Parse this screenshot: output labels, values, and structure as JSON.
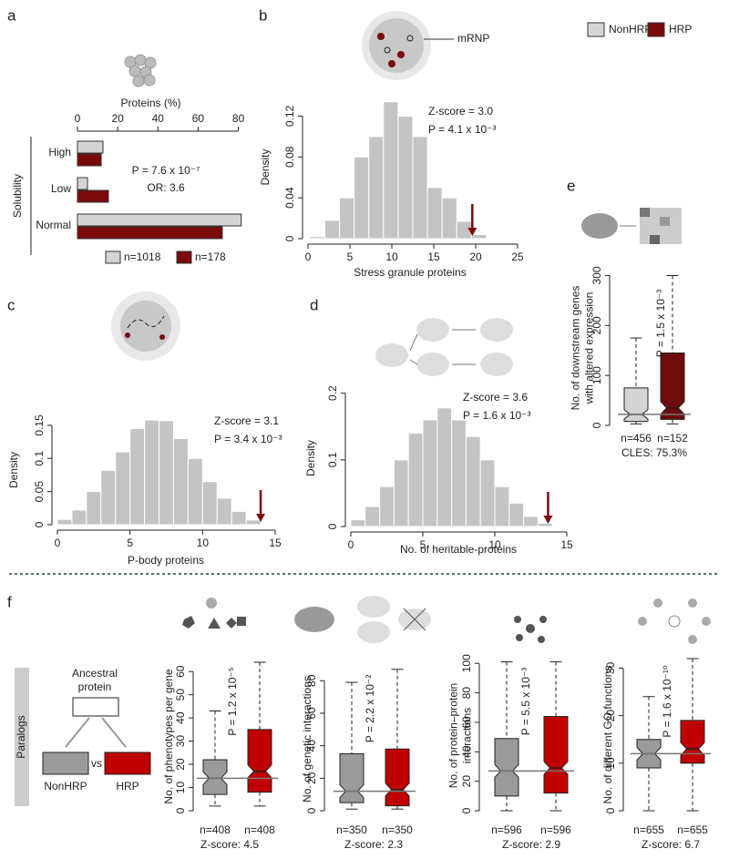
{
  "panel_labels": [
    "a",
    "b",
    "c",
    "d",
    "e",
    "f"
  ],
  "legend": [
    {
      "name": "NonHRP",
      "color": "#d4d4d4"
    },
    {
      "name": "HRP",
      "color": "#7a0a0a"
    }
  ],
  "icon_label": "mRNP",
  "schematic": {
    "side_label": "Paralogs",
    "ancestor": [
      "Ancestral",
      "protein"
    ],
    "left": "NonHRP",
    "vs": "vs",
    "right": "HRP"
  },
  "chart_data": [
    {
      "type": "hbar",
      "xlabel": "Proteins (%)",
      "ylabel": "Solubility",
      "categories": [
        "High",
        "Low",
        "Normal"
      ],
      "series": [
        {
          "name": "n=1018",
          "color": "#d4d4d4",
          "values": [
            12.7,
            5,
            81.4
          ]
        },
        {
          "name": "n=178",
          "color": "#7a0a0a",
          "values": [
            11.8,
            15.4,
            72
          ]
        }
      ],
      "xlim": [
        0,
        82
      ],
      "xticks": [
        0,
        20,
        40,
        60,
        80
      ],
      "annotations": [
        "P = 7.6 x 10⁻⁷",
        "OR: 3.6"
      ]
    },
    {
      "type": "histogram",
      "xlabel": "Stress granule proteins",
      "ylabel": "Density",
      "color": "#c4c4c4",
      "marker_color": "#7a0a0a",
      "bins": [
        0.25,
        2,
        3.75,
        5.5,
        7.25,
        9,
        10.75,
        12.5,
        14.25,
        16,
        17.75,
        19.5,
        21.25
      ],
      "values": [
        0.002,
        0.018,
        0.04,
        0.08,
        0.1,
        0.134,
        0.12,
        0.1,
        0.05,
        0.04,
        0.017,
        0.004
      ],
      "observed": 19.6,
      "xlim": [
        0,
        25
      ],
      "xticks": [
        0,
        5,
        10,
        15,
        20,
        25
      ],
      "ylim": [
        0,
        0.14
      ],
      "yticks": [
        0,
        0.04,
        0.08,
        0.12
      ],
      "annotations": [
        "Z-score = 3.0",
        "P = 4.1 x 10⁻³"
      ]
    },
    {
      "type": "histogram",
      "xlabel": "P-body proteins",
      "ylabel": "Density",
      "color": "#c4c4c4",
      "marker_color": "#7a0a0a",
      "bins": [
        0,
        1,
        2,
        3,
        4,
        5,
        6,
        7,
        8,
        9,
        10,
        11,
        12,
        13,
        14
      ],
      "values": [
        0.008,
        0.022,
        0.05,
        0.082,
        0.11,
        0.145,
        0.158,
        0.157,
        0.13,
        0.1,
        0.065,
        0.04,
        0.02,
        0.007
      ],
      "observed": 14,
      "xlim": [
        0,
        15
      ],
      "xticks": [
        0,
        5,
        10,
        15
      ],
      "ylim": [
        0,
        0.165
      ],
      "yticks": [
        0,
        0.05,
        0.1,
        0.15
      ],
      "annotations": [
        "Z-score = 3.1",
        "P = 3.4 x 10⁻³"
      ]
    },
    {
      "type": "histogram",
      "xlabel": "No. of heritable-proteins",
      "ylabel": "Density",
      "color": "#c4c4c4",
      "marker_color": "#7a0a0a",
      "bins": [
        0,
        1,
        2,
        3,
        4,
        5,
        6,
        7,
        8,
        9,
        10,
        11,
        12,
        13,
        14
      ],
      "values": [
        0.01,
        0.03,
        0.06,
        0.1,
        0.14,
        0.16,
        0.178,
        0.16,
        0.135,
        0.1,
        0.06,
        0.035,
        0.015,
        0.005
      ],
      "observed": 13.7,
      "xlim": [
        0,
        15
      ],
      "xticks": [
        0,
        5,
        10,
        15
      ],
      "ylim": [
        0,
        0.205
      ],
      "yticks": [
        0,
        0.1,
        0.2
      ],
      "annotations": [
        "Z-score = 3.6",
        "P = 1.6 x 10⁻³"
      ]
    },
    {
      "type": "box",
      "ylabel": [
        "No. of downstream genes",
        "with altered expression"
      ],
      "boxes": [
        {
          "label": "n=456",
          "color": "#d4d4d4",
          "min": 3,
          "q1": 8,
          "median": 22,
          "q3": 75,
          "max": 175
        },
        {
          "label": "n=152",
          "color": "#6e0b0b",
          "min": 3,
          "q1": 12,
          "median": 35,
          "q3": 145,
          "max": 300
        }
      ],
      "reference": 22,
      "ylim": [
        0,
        310
      ],
      "yticks": [
        0,
        100,
        200,
        300
      ],
      "annotations": [
        "P = 1.5 x 10⁻³"
      ],
      "footer": "CLES: 75.3%"
    },
    {
      "type": "box",
      "ylabel": [
        "No. of phenotypes per gene"
      ],
      "boxes": [
        {
          "label": "n=408",
          "color": "#9a9a9a",
          "min": 2,
          "q1": 7,
          "median": 14,
          "q3": 22,
          "max": 43
        },
        {
          "label": "n=408",
          "color": "#c00000",
          "min": 2,
          "q1": 8,
          "median": 17,
          "q3": 35,
          "max": 64
        }
      ],
      "reference": 14,
      "ylim": [
        0,
        64
      ],
      "yticks": [
        0,
        10,
        20,
        30,
        40,
        50,
        60
      ],
      "annotations": [
        "P = 1.2 x 10⁻⁵"
      ],
      "footer": "Z-score: 4.5"
    },
    {
      "type": "box",
      "ylabel": [
        "No. of genetic interactions"
      ],
      "boxes": [
        {
          "label": "n=350",
          "color": "#9a9a9a",
          "min": 1,
          "q1": 5,
          "median": 12,
          "q3": 35,
          "max": 79
        },
        {
          "label": "n=350",
          "color": "#c00000",
          "min": 1,
          "q1": 3,
          "median": 13,
          "q3": 38,
          "max": 87
        }
      ],
      "reference": 12,
      "ylim": [
        0,
        88
      ],
      "yticks": [
        0,
        20,
        40,
        60,
        80
      ],
      "annotations": [
        "P = 2.2 x 10⁻²"
      ],
      "footer": "Z-score: 2.3"
    },
    {
      "type": "box",
      "ylabel": [
        "No. of protein–protein",
        "interactions"
      ],
      "boxes": [
        {
          "label": "n=596",
          "color": "#9a9a9a",
          "min": 0,
          "q1": 10,
          "median": 27,
          "q3": 49,
          "max": 101
        },
        {
          "label": "n=596",
          "color": "#c00000",
          "min": 0,
          "q1": 12,
          "median": 29,
          "q3": 64,
          "max": 101
        }
      ],
      "reference": 27,
      "ylim": [
        0,
        102
      ],
      "yticks": [
        0,
        20,
        40,
        60,
        80,
        100
      ],
      "annotations": [
        "P = 5.5 x 10⁻³"
      ],
      "footer": "Z-score: 2.9"
    },
    {
      "type": "box",
      "ylabel": [
        "No. of different GO functions"
      ],
      "boxes": [
        {
          "label": "n=655",
          "color": "#9a9a9a",
          "min": 0,
          "q1": 9,
          "median": 12,
          "q3": 15,
          "max": 24
        },
        {
          "label": "n=655",
          "color": "#c00000",
          "min": 0,
          "q1": 10,
          "median": 13,
          "q3": 19,
          "max": 32
        }
      ],
      "reference": 12,
      "ylim": [
        0,
        32
      ],
      "yticks": [
        0,
        10,
        20,
        30
      ],
      "annotations": [
        "P = 1.6 x 10⁻¹⁰"
      ],
      "footer": "Z-score: 6.7"
    }
  ]
}
